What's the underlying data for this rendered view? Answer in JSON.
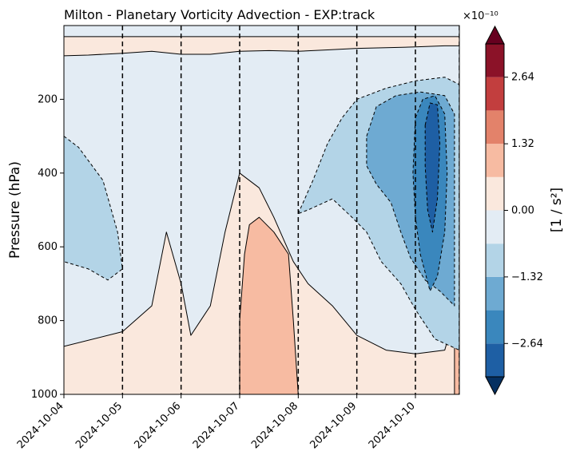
{
  "chart_data": {
    "type": "heatmap",
    "title": "Milton - Planetary Vorticity Advection - EXP:track",
    "xlabel": "",
    "ylabel": "Pressure (hPa)",
    "x_ticks": [
      "2024-10-04",
      "2024-10-05",
      "2024-10-06",
      "2024-10-07",
      "2024-10-08",
      "2024-10-09",
      "2024-10-10"
    ],
    "x_range": [
      "2024-10-04 00:00",
      "2024-10-10 18:00"
    ],
    "y_ticks": [
      200,
      400,
      600,
      800,
      1000
    ],
    "y_range": [
      0,
      1000
    ],
    "y_inverted": true,
    "vertical_dashed_lines": [
      "2024-10-05",
      "2024-10-06",
      "2024-10-07",
      "2024-10-08",
      "2024-10-09",
      "2024-10-10",
      "2024-10-10 18:00"
    ],
    "colorbar": {
      "label": "[1 / s²]",
      "exponent_label": "×10⁻¹⁰",
      "ticks": [
        "2.64",
        "1.32",
        "0.00",
        "−1.32",
        "−2.64"
      ],
      "levels_e10": [
        -3.3,
        -2.64,
        -1.98,
        -1.32,
        -0.66,
        0.0,
        0.66,
        1.32,
        1.98,
        2.64,
        3.3
      ],
      "colors": [
        "#053061",
        "#1e5fa4",
        "#3a87bd",
        "#6eaad2",
        "#b3d4e7",
        "#e3ecf4",
        "#fae8dd",
        "#f7bba2",
        "#e3826a",
        "#c23e3e",
        "#8b1228",
        "#67001f"
      ],
      "extend": "both"
    },
    "series": [
      {
        "name": "",
        "note_regions": "filled contour regions in data units (hours since 2024-10-04 00:00, hPa)",
        "regions": [
          {
            "level": "0.00 to 0.66",
            "color": "#fae8dd",
            "points": [
              [
                0,
                1000
              ],
              [
                0,
                870
              ],
              [
                24,
                830
              ],
              [
                36,
                760
              ],
              [
                42,
                560
              ],
              [
                48,
                700
              ],
              [
                52,
                840
              ],
              [
                60,
                760
              ],
              [
                66,
                560
              ],
              [
                72,
                400
              ],
              [
                80,
                440
              ],
              [
                86,
                520
              ],
              [
                94,
                640
              ],
              [
                100,
                700
              ],
              [
                110,
                760
              ],
              [
                120,
                840
              ],
              [
                132,
                880
              ],
              [
                144,
                890
              ],
              [
                156,
                880
              ],
              [
                162,
                740
              ],
              [
                162,
                1000
              ]
            ]
          },
          {
            "level": "0.00 to 0.66",
            "color": "#fae8dd",
            "points": [
              [
                0,
                30
              ],
              [
                0,
                82
              ],
              [
                10,
                80
              ],
              [
                24,
                75
              ],
              [
                36,
                70
              ],
              [
                48,
                78
              ],
              [
                60,
                78
              ],
              [
                72,
                70
              ],
              [
                84,
                68
              ],
              [
                96,
                70
              ],
              [
                108,
                66
              ],
              [
                120,
                62
              ],
              [
                132,
                60
              ],
              [
                144,
                58
              ],
              [
                156,
                55
              ],
              [
                162,
                55
              ],
              [
                162,
                30
              ]
            ]
          },
          {
            "level": "0.66 to 1.32",
            "color": "#f7bba2",
            "points": [
              [
                72,
                1000
              ],
              [
                72,
                800
              ],
              [
                74,
                620
              ],
              [
                76,
                540
              ],
              [
                80,
                520
              ],
              [
                86,
                560
              ],
              [
                92,
                620
              ],
              [
                94,
                800
              ],
              [
                96,
                1000
              ]
            ]
          },
          {
            "level": "0.66 to 1.32",
            "color": "#f7bba2",
            "points": [
              [
                160,
                1000
              ],
              [
                160,
                860
              ],
              [
                161,
                700
              ],
              [
                162,
                600
              ],
              [
                162,
                1000
              ]
            ]
          },
          {
            "level": "−0.66 to 0.00",
            "color": "#b3d4e7",
            "points": [
              [
                0,
                300
              ],
              [
                6,
                330
              ],
              [
                16,
                420
              ],
              [
                22,
                560
              ],
              [
                24,
                660
              ],
              [
                18,
                690
              ],
              [
                10,
                660
              ],
              [
                0,
                640
              ]
            ]
          },
          {
            "level": "−0.66 to 0.00",
            "color": "#b3d4e7",
            "points": [
              [
                96,
                510
              ],
              [
                102,
                420
              ],
              [
                108,
                320
              ],
              [
                114,
                250
              ],
              [
                120,
                200
              ],
              [
                132,
                170
              ],
              [
                144,
                150
              ],
              [
                156,
                140
              ],
              [
                162,
                160
              ],
              [
                162,
                880
              ],
              [
                152,
                850
              ],
              [
                144,
                770
              ],
              [
                138,
                700
              ],
              [
                130,
                640
              ],
              [
                124,
                560
              ],
              [
                118,
                520
              ],
              [
                110,
                470
              ],
              [
                100,
                500
              ]
            ]
          },
          {
            "level": "−1.32 to −0.66",
            "color": "#6eaad2",
            "points": [
              [
                124,
                300
              ],
              [
                128,
                220
              ],
              [
                136,
                190
              ],
              [
                146,
                180
              ],
              [
                156,
                190
              ],
              [
                160,
                240
              ],
              [
                160,
                760
              ],
              [
                154,
                720
              ],
              [
                148,
                690
              ],
              [
                142,
                630
              ],
              [
                138,
                560
              ],
              [
                134,
                480
              ],
              [
                128,
                430
              ],
              [
                124,
                380
              ]
            ]
          },
          {
            "level": "−1.98 to −1.32",
            "color": "#3a87bd",
            "points": [
              [
                144,
                250
              ],
              [
                147,
                200
              ],
              [
                152,
                190
              ],
              [
                156,
                240
              ],
              [
                157,
                400
              ],
              [
                156,
                560
              ],
              [
                153,
                680
              ],
              [
                150,
                720
              ],
              [
                146,
                620
              ],
              [
                144,
                520
              ],
              [
                143,
                400
              ]
            ]
          },
          {
            "level": "−2.64 to −1.98",
            "color": "#1e5fa4",
            "points": [
              [
                148,
                270
              ],
              [
                150,
                210
              ],
              [
                153,
                215
              ],
              [
                154,
                320
              ],
              [
                153,
                470
              ],
              [
                151,
                560
              ],
              [
                149,
                500
              ],
              [
                148,
                380
              ]
            ]
          }
        ]
      }
    ],
    "grid": false
  }
}
